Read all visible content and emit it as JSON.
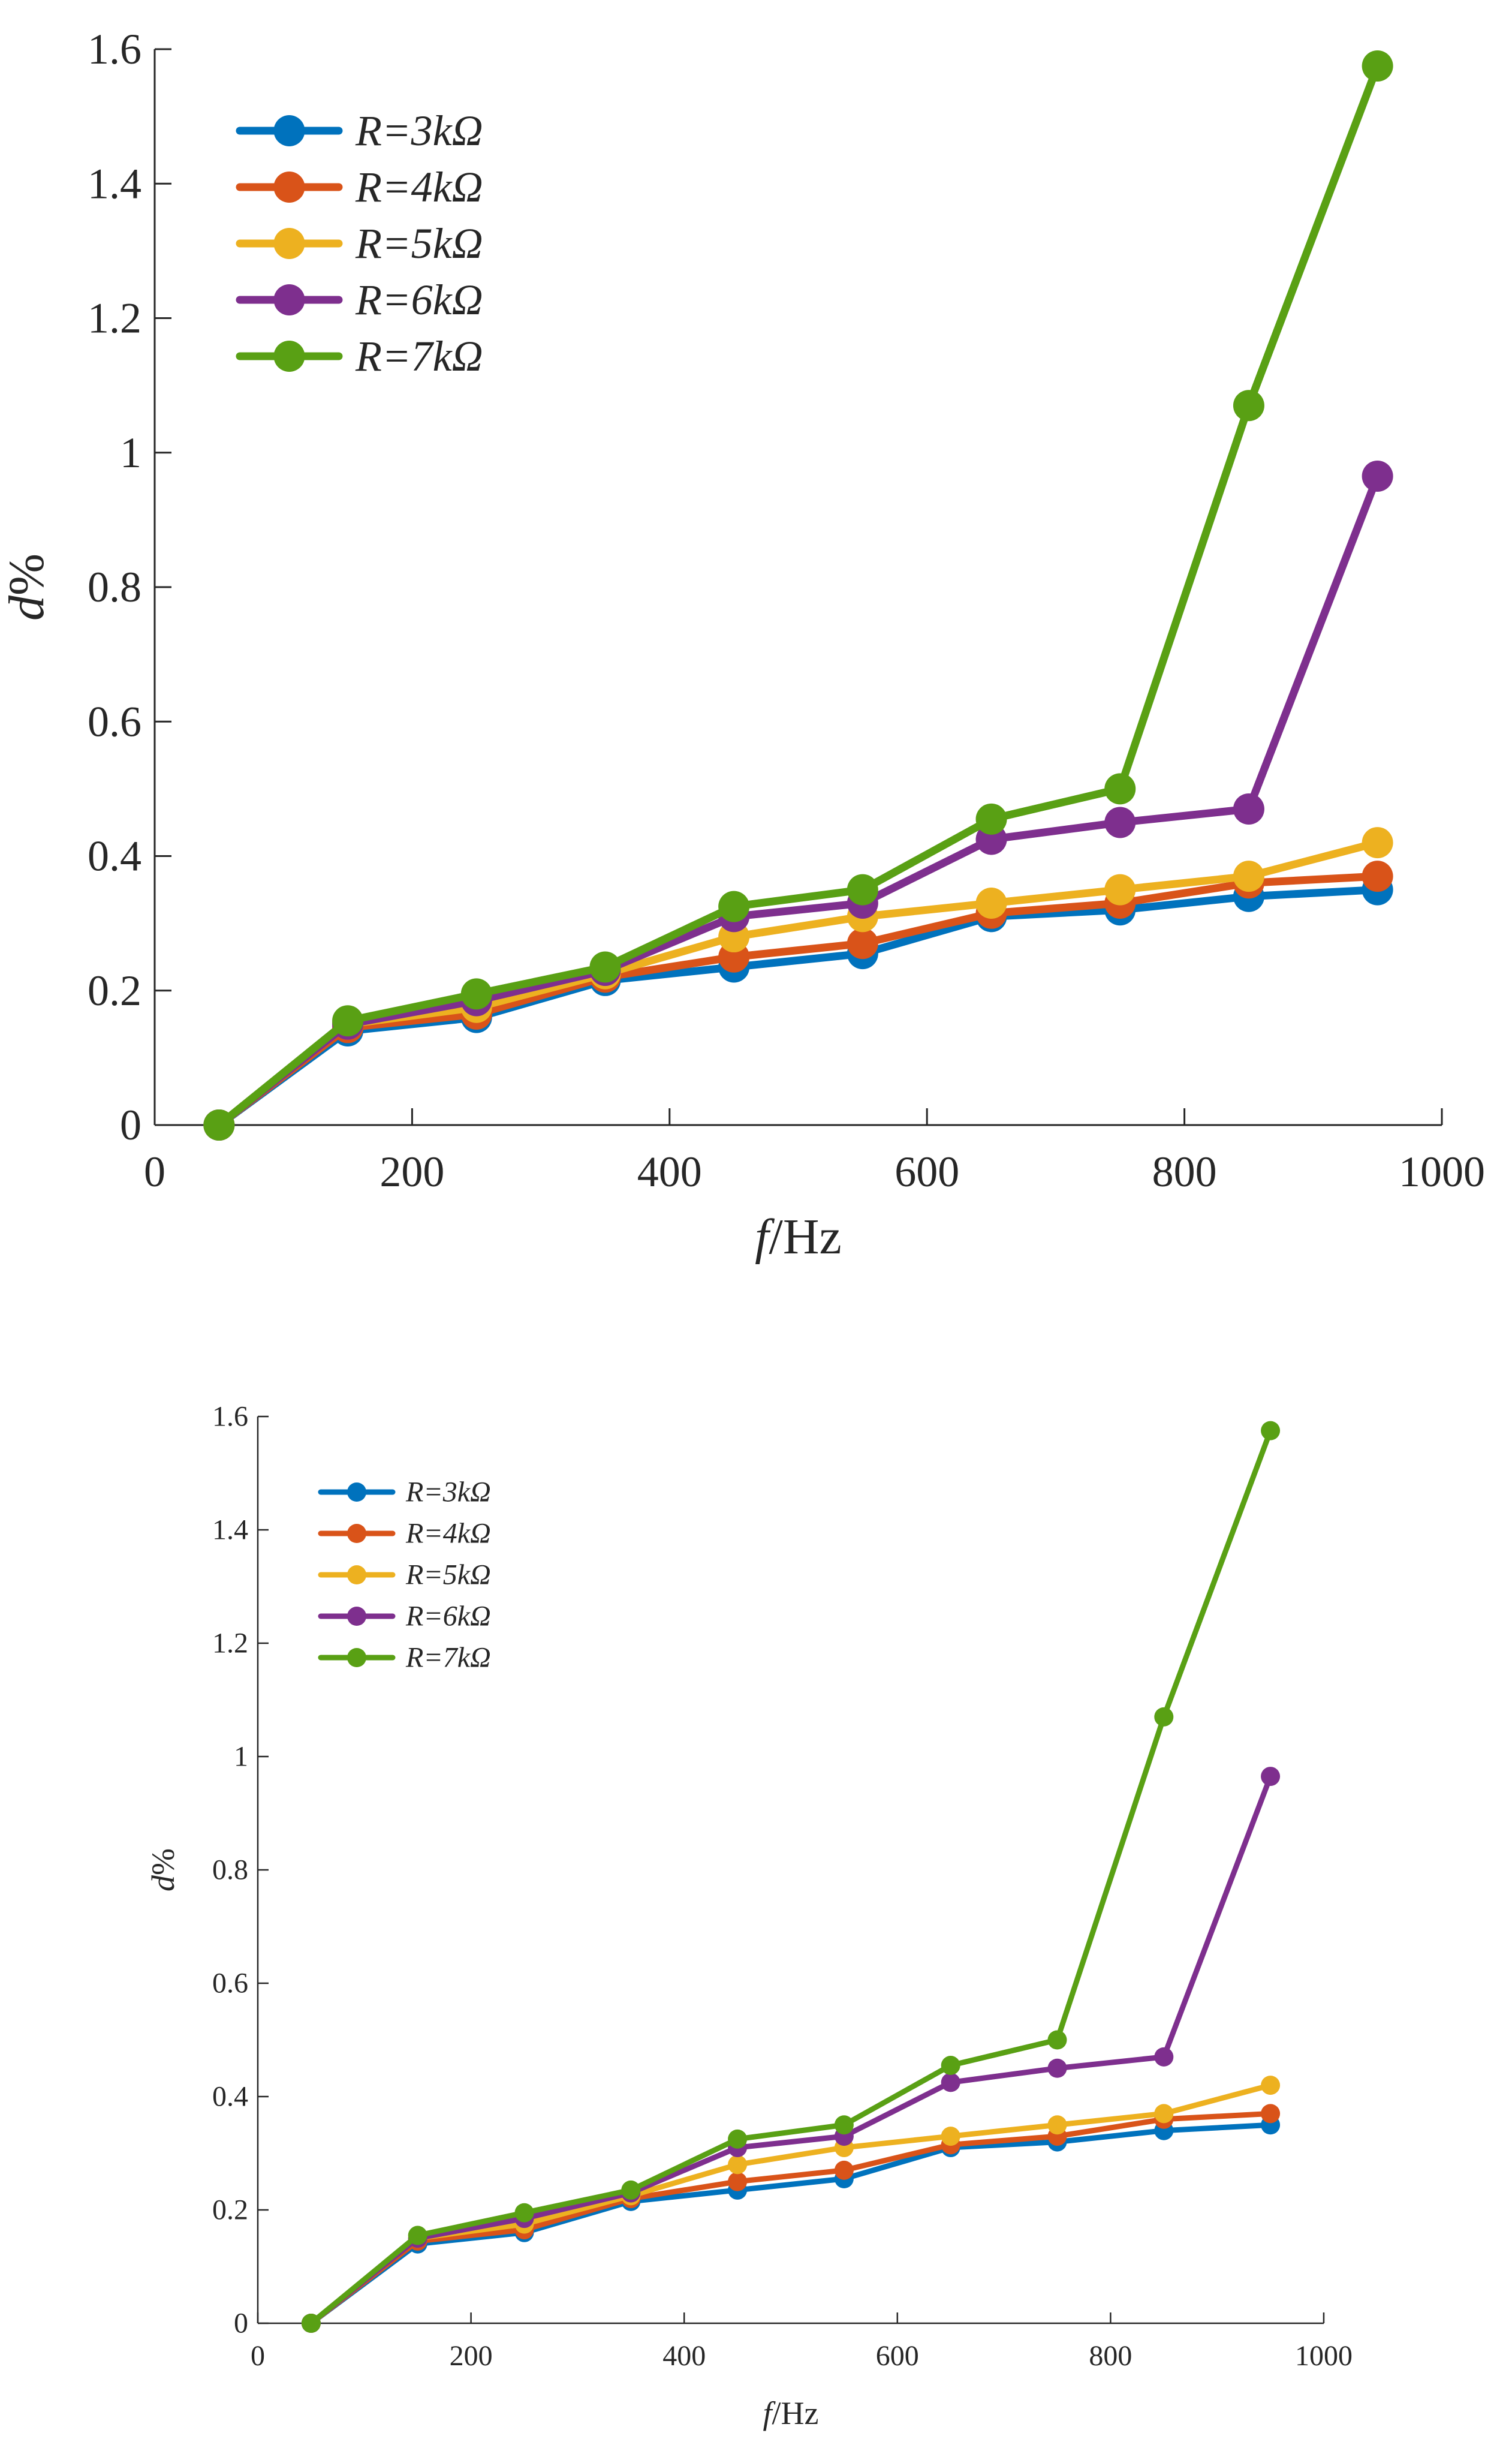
{
  "chart_data": [
    {
      "type": "line",
      "title": "",
      "xlabel": {
        "italic": "f",
        "normal": "/Hz"
      },
      "ylabel": {
        "italic": "d",
        "normal": "%"
      },
      "xlim": [
        0,
        1000
      ],
      "ylim": [
        0,
        1.6
      ],
      "x_ticks": [
        0,
        200,
        400,
        600,
        800,
        1000
      ],
      "x_tick_labels": [
        "0",
        "200",
        "400",
        "600",
        "800",
        "1000"
      ],
      "y_ticks": [
        0,
        0.2,
        0.4,
        0.6,
        0.8,
        1,
        1.2,
        1.4,
        1.6
      ],
      "y_tick_labels": [
        "0",
        "0.2",
        "0.4",
        "0.6",
        "0.8",
        "1",
        "1.2",
        "1.4",
        "1.6"
      ],
      "legend_position": "top-left",
      "grid": false,
      "x": [
        50,
        150,
        250,
        350,
        450,
        550,
        650,
        750,
        850,
        950
      ],
      "series": [
        {
          "name": "R=3kΩ",
          "color": "#0072BD",
          "values": [
            0,
            0.14,
            0.16,
            0.215,
            0.235,
            0.255,
            0.31,
            0.32,
            0.34,
            0.35
          ]
        },
        {
          "name": "R=4kΩ",
          "color": "#D95319",
          "values": [
            0,
            0.145,
            0.165,
            0.22,
            0.25,
            0.27,
            0.315,
            0.33,
            0.36,
            0.37
          ]
        },
        {
          "name": "R=5kΩ",
          "color": "#EDB120",
          "values": [
            0,
            0.15,
            0.175,
            0.225,
            0.28,
            0.31,
            0.33,
            0.35,
            0.37,
            0.42
          ]
        },
        {
          "name": "R=6kΩ",
          "color": "#7E2F8E",
          "values": [
            0,
            0.15,
            0.185,
            0.23,
            0.31,
            0.33,
            0.425,
            0.45,
            0.47,
            0.965
          ]
        },
        {
          "name": "R=7kΩ",
          "color": "#59A014",
          "values": [
            0,
            0.155,
            0.195,
            0.235,
            0.325,
            0.35,
            0.455,
            0.5,
            1.07,
            1.575
          ]
        }
      ]
    },
    {
      "type": "line",
      "title": "",
      "xlabel": {
        "italic": "f",
        "normal": "/Hz"
      },
      "ylabel": {
        "italic": "d",
        "normal": "%"
      },
      "xlim": [
        0,
        1000
      ],
      "ylim": [
        0,
        1.6
      ],
      "x_ticks": [
        0,
        200,
        400,
        600,
        800,
        1000
      ],
      "x_tick_labels": [
        "0",
        "200",
        "400",
        "600",
        "800",
        "1000"
      ],
      "y_ticks": [
        0,
        0.2,
        0.4,
        0.6,
        0.8,
        1,
        1.2,
        1.4,
        1.6
      ],
      "y_tick_labels": [
        "0",
        "0.2",
        "0.4",
        "0.6",
        "0.8",
        "1",
        "1.2",
        "1.4",
        "1.6"
      ],
      "legend_position": "top-left",
      "grid": false,
      "x": [
        50,
        150,
        250,
        350,
        450,
        550,
        650,
        750,
        850,
        950
      ],
      "series": [
        {
          "name": "R=3kΩ",
          "color": "#0072BD",
          "values": [
            0,
            0.14,
            0.16,
            0.215,
            0.235,
            0.255,
            0.31,
            0.32,
            0.34,
            0.35
          ]
        },
        {
          "name": "R=4kΩ",
          "color": "#D95319",
          "values": [
            0,
            0.145,
            0.165,
            0.22,
            0.25,
            0.27,
            0.315,
            0.33,
            0.36,
            0.37
          ]
        },
        {
          "name": "R=5kΩ",
          "color": "#EDB120",
          "values": [
            0,
            0.15,
            0.175,
            0.225,
            0.28,
            0.31,
            0.33,
            0.35,
            0.37,
            0.42
          ]
        },
        {
          "name": "R=6kΩ",
          "color": "#7E2F8E",
          "values": [
            0,
            0.15,
            0.185,
            0.23,
            0.31,
            0.33,
            0.425,
            0.45,
            0.47,
            0.965
          ]
        },
        {
          "name": "R=7kΩ",
          "color": "#59A014",
          "values": [
            0,
            0.155,
            0.195,
            0.235,
            0.325,
            0.35,
            0.455,
            0.5,
            1.07,
            1.575
          ]
        }
      ]
    }
  ]
}
